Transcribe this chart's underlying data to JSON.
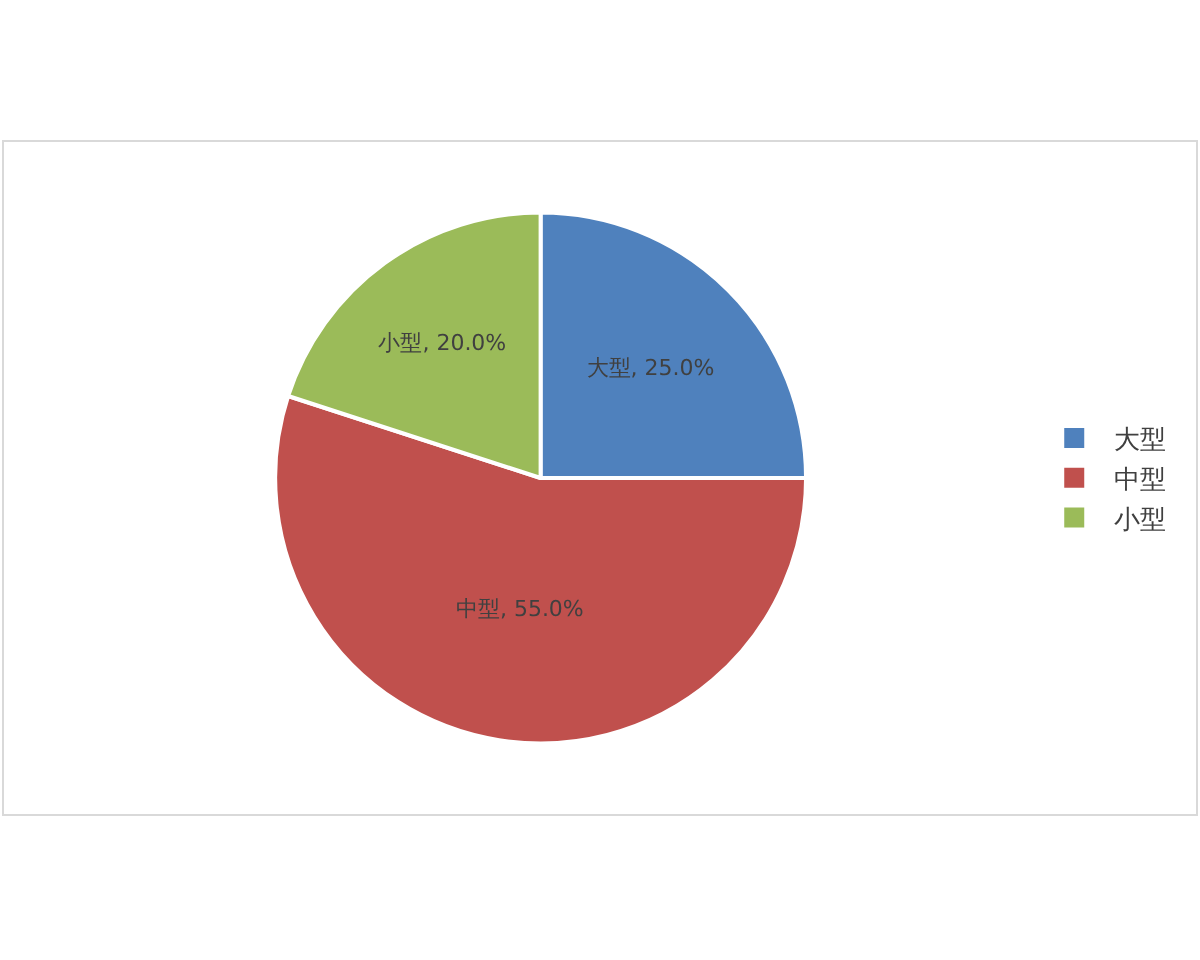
{
  "chart_data": {
    "type": "pie",
    "categories": [
      "大型",
      "中型",
      "小型"
    ],
    "values": [
      25,
      55,
      20
    ],
    "colors": [
      "#4f81bd",
      "#c0504d",
      "#9bbb59"
    ],
    "value_labels": [
      "大型, 25.0%",
      "中型, 55.0%",
      "小型, 20.0%"
    ],
    "legend": "right"
  }
}
